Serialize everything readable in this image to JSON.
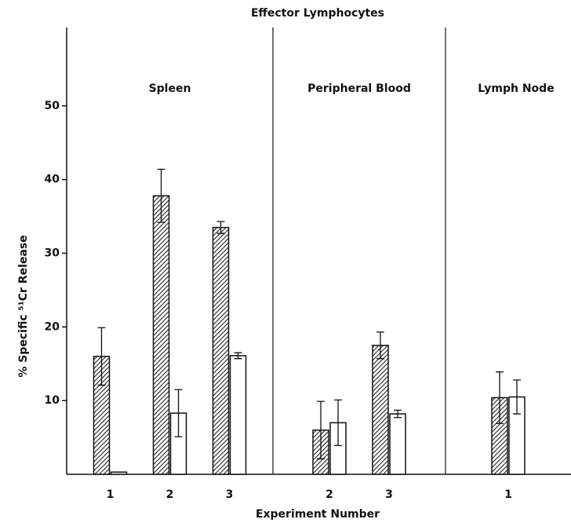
{
  "chart_data": {
    "type": "bar",
    "title": "Effector Lymphocytes",
    "x_label": "Experiment Number",
    "y_label": "% Specific ⁵¹Cr Release",
    "ylim": [
      0,
      60
    ],
    "yticks": [
      10,
      20,
      30,
      40,
      50
    ],
    "panels": [
      {
        "title": "Spleen",
        "categories": [
          "1",
          "2",
          "3"
        ],
        "series": [
          {
            "color": "#222222",
            "pattern": "hatch",
            "values": [
              16,
              37.8,
              33.5
            ],
            "errors": [
              3.9,
              3.6,
              0.8
            ]
          },
          {
            "color": "#ffffff",
            "values": [
              0.3,
              8.3,
              16.1
            ],
            "errors": [
              0,
              3.2,
              0.4
            ]
          }
        ]
      },
      {
        "title": "Peripheral Blood",
        "categories": [
          "2",
          "3"
        ],
        "series": [
          {
            "color": "#222222",
            "pattern": "hatch",
            "values": [
              6,
              17.5
            ],
            "errors": [
              3.9,
              1.8
            ]
          },
          {
            "color": "#ffffff",
            "values": [
              7,
              8.2
            ],
            "errors": [
              3.1,
              0.5
            ]
          }
        ]
      },
      {
        "title": "Lymph Node",
        "categories": [
          "1"
        ],
        "series": [
          {
            "color": "#222222",
            "pattern": "hatch",
            "values": [
              10.4
            ],
            "errors": [
              3.5
            ]
          },
          {
            "color": "#ffffff",
            "values": [
              10.5
            ],
            "errors": [
              2.3
            ]
          }
        ]
      }
    ]
  }
}
